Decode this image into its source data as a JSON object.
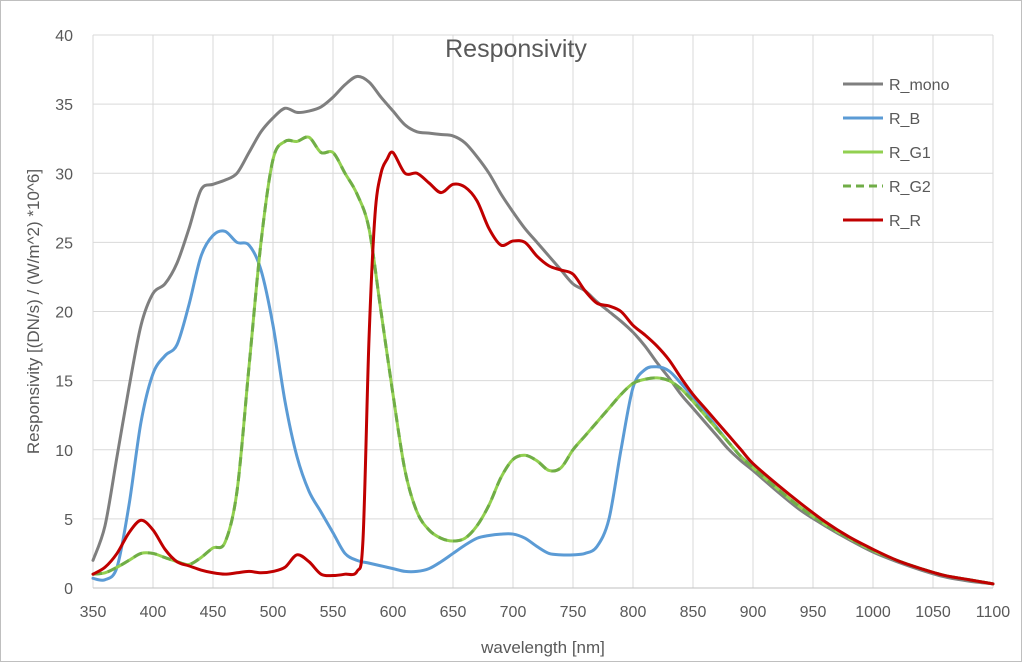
{
  "chart_data": {
    "type": "line",
    "title": "Responsivity",
    "xlabel": "wavelength [nm]",
    "ylabel": "Responsivity [(DN/s) / (W/m^2) *10^6]",
    "xlim": [
      350,
      1100
    ],
    "ylim": [
      0,
      40
    ],
    "x_ticks": [
      350,
      400,
      450,
      500,
      550,
      600,
      650,
      700,
      750,
      800,
      850,
      900,
      950,
      1000,
      1050,
      1100
    ],
    "y_ticks": [
      0,
      5,
      10,
      15,
      20,
      25,
      30,
      35,
      40
    ],
    "grid": true,
    "legend_position": "top-right",
    "series": [
      {
        "name": "R_mono",
        "color": "#7f7f7f",
        "dash": false,
        "x": [
          350,
          360,
          370,
          380,
          390,
          400,
          410,
          420,
          430,
          440,
          450,
          460,
          470,
          480,
          490,
          500,
          510,
          520,
          530,
          540,
          550,
          560,
          570,
          580,
          590,
          600,
          610,
          620,
          630,
          640,
          650,
          660,
          670,
          680,
          690,
          700,
          710,
          720,
          730,
          740,
          750,
          760,
          770,
          780,
          790,
          800,
          810,
          820,
          830,
          840,
          850,
          860,
          870,
          880,
          890,
          900,
          920,
          940,
          960,
          980,
          1000,
          1020,
          1040,
          1060,
          1080,
          1100
        ],
        "values": [
          2.0,
          4.5,
          9.5,
          14.5,
          19.0,
          21.3,
          22.0,
          23.5,
          26.0,
          28.8,
          29.2,
          29.5,
          30.0,
          31.5,
          33.0,
          34.0,
          34.7,
          34.4,
          34.5,
          34.8,
          35.5,
          36.4,
          37.0,
          36.6,
          35.5,
          34.5,
          33.5,
          33.0,
          32.9,
          32.8,
          32.7,
          32.2,
          31.2,
          30.0,
          28.5,
          27.2,
          26.0,
          25.0,
          24.0,
          23.0,
          22.0,
          21.5,
          20.7,
          20.0,
          19.3,
          18.5,
          17.5,
          16.3,
          15.2,
          14.0,
          13.0,
          12.0,
          11.0,
          10.0,
          9.2,
          8.5,
          7.0,
          5.6,
          4.5,
          3.5,
          2.6,
          1.9,
          1.3,
          0.8,
          0.5,
          0.3
        ]
      },
      {
        "name": "R_B",
        "color": "#5b9bd5",
        "dash": false,
        "x": [
          350,
          360,
          370,
          380,
          390,
          400,
          410,
          420,
          430,
          440,
          450,
          460,
          470,
          480,
          490,
          500,
          510,
          520,
          530,
          540,
          550,
          560,
          570,
          580,
          590,
          600,
          610,
          620,
          630,
          640,
          650,
          660,
          670,
          680,
          690,
          700,
          710,
          720,
          730,
          740,
          750,
          760,
          770,
          780,
          790,
          800,
          810,
          820,
          830,
          840,
          850,
          860,
          870,
          880,
          890,
          900,
          920,
          940,
          960,
          980,
          1000,
          1020,
          1040,
          1060,
          1080,
          1100
        ],
        "values": [
          0.7,
          0.6,
          1.5,
          6.0,
          12.0,
          15.5,
          16.8,
          17.6,
          20.5,
          24.0,
          25.5,
          25.8,
          25.0,
          24.8,
          23.0,
          19.0,
          13.5,
          9.5,
          7.0,
          5.5,
          4.0,
          2.5,
          2.0,
          1.8,
          1.6,
          1.4,
          1.2,
          1.2,
          1.4,
          1.9,
          2.5,
          3.1,
          3.6,
          3.8,
          3.9,
          3.9,
          3.6,
          3.0,
          2.5,
          2.4,
          2.4,
          2.5,
          3.0,
          5.0,
          10.0,
          14.5,
          15.8,
          16.0,
          15.7,
          14.8,
          13.8,
          12.7,
          11.6,
          10.5,
          9.5,
          8.8,
          7.2,
          5.8,
          4.6,
          3.6,
          2.7,
          2.0,
          1.4,
          0.9,
          0.6,
          0.3
        ]
      },
      {
        "name": "R_G1",
        "color": "#92d050",
        "dash": false,
        "x": [
          350,
          360,
          370,
          380,
          390,
          400,
          410,
          420,
          430,
          440,
          450,
          460,
          470,
          480,
          490,
          500,
          510,
          520,
          530,
          540,
          550,
          560,
          570,
          580,
          590,
          600,
          610,
          620,
          630,
          640,
          650,
          660,
          670,
          680,
          690,
          700,
          710,
          720,
          730,
          740,
          750,
          760,
          770,
          780,
          790,
          800,
          810,
          820,
          830,
          840,
          850,
          860,
          870,
          880,
          890,
          900,
          920,
          940,
          960,
          980,
          1000,
          1020,
          1040,
          1060,
          1080,
          1100
        ],
        "values": [
          1.0,
          1.1,
          1.5,
          2.0,
          2.5,
          2.5,
          2.2,
          1.9,
          1.7,
          2.2,
          2.9,
          3.3,
          7.0,
          16.0,
          25.0,
          31.0,
          32.3,
          32.3,
          32.6,
          31.5,
          31.5,
          30.0,
          28.5,
          26.0,
          20.0,
          14.0,
          8.5,
          5.5,
          4.2,
          3.6,
          3.4,
          3.6,
          4.5,
          6.0,
          8.0,
          9.3,
          9.6,
          9.2,
          8.5,
          8.7,
          10.0,
          11.0,
          12.0,
          13.0,
          14.0,
          14.8,
          15.1,
          15.2,
          15.0,
          14.4,
          13.5,
          12.5,
          11.5,
          10.5,
          9.5,
          8.7,
          7.2,
          5.8,
          4.6,
          3.6,
          2.7,
          2.0,
          1.4,
          0.9,
          0.6,
          0.3
        ]
      },
      {
        "name": "R_G2",
        "color": "#70ad47",
        "dash": true,
        "x": [
          350,
          360,
          370,
          380,
          390,
          400,
          410,
          420,
          430,
          440,
          450,
          460,
          470,
          480,
          490,
          500,
          510,
          520,
          530,
          540,
          550,
          560,
          570,
          580,
          590,
          600,
          610,
          620,
          630,
          640,
          650,
          660,
          670,
          680,
          690,
          700,
          710,
          720,
          730,
          740,
          750,
          760,
          770,
          780,
          790,
          800,
          810,
          820,
          830,
          840,
          850,
          860,
          870,
          880,
          890,
          900,
          920,
          940,
          960,
          980,
          1000,
          1020,
          1040,
          1060,
          1080,
          1100
        ],
        "values": [
          1.0,
          1.1,
          1.5,
          2.0,
          2.5,
          2.5,
          2.2,
          1.9,
          1.7,
          2.2,
          2.9,
          3.3,
          7.0,
          16.0,
          25.0,
          31.0,
          32.3,
          32.3,
          32.6,
          31.5,
          31.5,
          30.0,
          28.5,
          26.0,
          20.0,
          14.0,
          8.5,
          5.5,
          4.2,
          3.6,
          3.4,
          3.6,
          4.5,
          6.0,
          8.0,
          9.3,
          9.6,
          9.2,
          8.5,
          8.7,
          10.0,
          11.0,
          12.0,
          13.0,
          14.0,
          14.8,
          15.1,
          15.2,
          15.0,
          14.4,
          13.5,
          12.5,
          11.5,
          10.5,
          9.5,
          8.7,
          7.2,
          5.8,
          4.6,
          3.6,
          2.7,
          2.0,
          1.4,
          0.9,
          0.6,
          0.3
        ]
      },
      {
        "name": "R_R",
        "color": "#c00000",
        "dash": false,
        "x": [
          350,
          360,
          370,
          380,
          390,
          400,
          410,
          420,
          430,
          440,
          450,
          460,
          470,
          480,
          490,
          500,
          510,
          520,
          530,
          540,
          550,
          560,
          570,
          575,
          580,
          585,
          590,
          595,
          600,
          610,
          620,
          630,
          640,
          650,
          660,
          670,
          680,
          690,
          700,
          710,
          720,
          730,
          740,
          750,
          760,
          770,
          780,
          790,
          800,
          810,
          820,
          830,
          840,
          850,
          860,
          870,
          880,
          890,
          900,
          920,
          940,
          960,
          980,
          1000,
          1020,
          1040,
          1060,
          1080,
          1100
        ],
        "values": [
          1.0,
          1.5,
          2.5,
          4.0,
          4.9,
          4.2,
          2.8,
          1.9,
          1.6,
          1.3,
          1.1,
          1.0,
          1.1,
          1.2,
          1.1,
          1.2,
          1.5,
          2.4,
          1.9,
          1.0,
          0.9,
          1.0,
          1.2,
          3.5,
          18.0,
          27.0,
          30.0,
          31.0,
          31.5,
          30.0,
          30.0,
          29.3,
          28.6,
          29.2,
          29.0,
          28.0,
          26.0,
          24.8,
          25.1,
          25.0,
          24.0,
          23.3,
          23.0,
          22.7,
          21.5,
          20.6,
          20.4,
          20.0,
          19.0,
          18.3,
          17.5,
          16.5,
          15.2,
          14.0,
          13.0,
          12.0,
          11.0,
          10.0,
          9.0,
          7.5,
          6.1,
          4.8,
          3.7,
          2.8,
          2.0,
          1.4,
          0.9,
          0.6,
          0.3
        ]
      }
    ]
  }
}
